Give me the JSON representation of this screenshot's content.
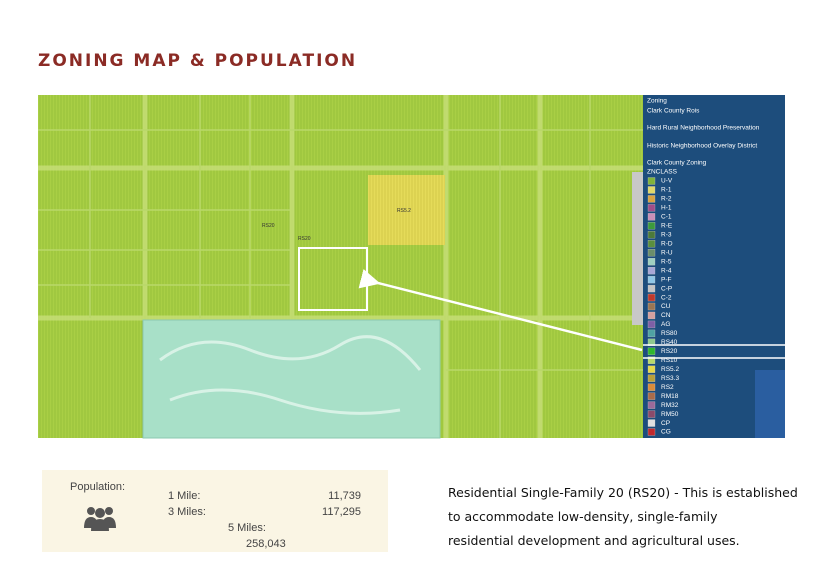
{
  "header": {
    "title": "ZONING MAP & POPULATION"
  },
  "map": {
    "labels": [
      "RS5.2",
      "RS20",
      "RS20"
    ],
    "legend": {
      "title": "Zoning",
      "layers": [
        "Clark County Rois",
        "Hard Rural Neighborhood Preservation",
        "Historic Neighborhood Overlay District",
        "Clark County Zoning"
      ],
      "class_label": "ZNCLASS",
      "classes": [
        {
          "label": "U-V",
          "color": "#7fb33a"
        },
        {
          "label": "R-1",
          "color": "#e0d86a"
        },
        {
          "label": "R-2",
          "color": "#d9a441"
        },
        {
          "label": "H-1",
          "color": "#a04e8a"
        },
        {
          "label": "C-1",
          "color": "#c98fb8"
        },
        {
          "label": "R-E",
          "color": "#3c9a3c"
        },
        {
          "label": "R-3",
          "color": "#4c7a3a"
        },
        {
          "label": "R-D",
          "color": "#5a8f3e"
        },
        {
          "label": "R-U",
          "color": "#6b8e6b"
        },
        {
          "label": "R-5",
          "color": "#9fd0c0"
        },
        {
          "label": "R-4",
          "color": "#a7a7d6"
        },
        {
          "label": "P-F",
          "color": "#8fc7e6"
        },
        {
          "label": "C-P",
          "color": "#c4c4c4"
        },
        {
          "label": "C-2",
          "color": "#c0392b"
        },
        {
          "label": "CU",
          "color": "#9b7653"
        },
        {
          "label": "CN",
          "color": "#d4a0a0"
        },
        {
          "label": "AG",
          "color": "#7d5fa6"
        },
        {
          "label": "RS80",
          "color": "#4fa3a3"
        },
        {
          "label": "RS40",
          "color": "#8ec98e"
        },
        {
          "label": "RS20",
          "color": "#2eb82e"
        },
        {
          "label": "RS10",
          "color": "#b7d96b"
        },
        {
          "label": "RS5.2",
          "color": "#e6d84a"
        },
        {
          "label": "RS3.3",
          "color": "#b9a03a"
        },
        {
          "label": "RS2",
          "color": "#d98c3a"
        },
        {
          "label": "RM18",
          "color": "#a86b4a"
        },
        {
          "label": "RM32",
          "color": "#9a6a9a"
        },
        {
          "label": "RM50",
          "color": "#8a4a6a"
        },
        {
          "label": "CP",
          "color": "#e0e0e0"
        },
        {
          "label": "CG",
          "color": "#c0282d"
        }
      ]
    }
  },
  "population": {
    "label": "Population:",
    "rows": [
      {
        "label": "1 Mile:",
        "value": "11,739"
      },
      {
        "label": "3 Miles:",
        "value": "117,295"
      },
      {
        "label": "5 Miles:",
        "value": "258,043"
      }
    ]
  },
  "description": {
    "lines": [
      "Residential Single-Family 20 (RS20)  - This is established",
      "to accommodate low-density, single-family",
      "residential development and agricultural uses."
    ]
  }
}
